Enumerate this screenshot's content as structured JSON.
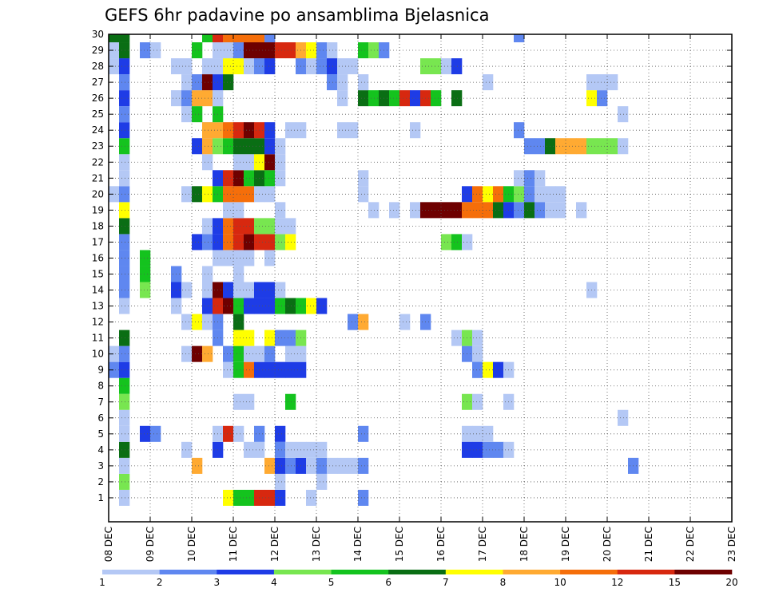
{
  "chart_data": {
    "type": "heatmap",
    "title": "GEFS 6hr padavine po ansamblima Bjelasnica",
    "x_tick_labels": [
      "08 DEC",
      "09 DEC",
      "10 DEC",
      "11 DEC",
      "12 DEC",
      "13 DEC",
      "14 DEC",
      "15 DEC",
      "16 DEC",
      "17 DEC",
      "18 DEC",
      "19 DEC",
      "20 DEC",
      "21 DEC",
      "22 DEC",
      "23 DEC"
    ],
    "y_tick_labels": [
      "1",
      "2",
      "3",
      "4",
      "5",
      "6",
      "7",
      "8",
      "9",
      "10",
      "11",
      "12",
      "13",
      "14",
      "15",
      "16",
      "17",
      "18",
      "19",
      "20",
      "21",
      "22",
      "23",
      "24",
      "25",
      "26",
      "27",
      "28",
      "29",
      "30"
    ],
    "time_step_hours": 6,
    "ensemble_members": 31,
    "grid": true,
    "colorbar": {
      "position": "bottom",
      "labels": [
        "1",
        "2",
        "3",
        "4",
        "5",
        "6",
        "7",
        "8",
        "10",
        "12",
        "15",
        "20"
      ],
      "colors": [
        "#b4c8f5",
        "#5f87f0",
        "#1e3ce6",
        "#78e650",
        "#14c31e",
        "#0a6e14",
        "#ffff00",
        "#ffaa32",
        "#f56e0a",
        "#d7280f",
        "#6e0000"
      ]
    },
    "series_note": "",
    "cells": [
      [
        0,
        10,
        1
      ],
      [
        0,
        9,
        2
      ],
      [
        0,
        20,
        1
      ],
      [
        0,
        28,
        1
      ],
      [
        0,
        29,
        1
      ],
      [
        0,
        30,
        6
      ],
      [
        1,
        1,
        1
      ],
      [
        1,
        2,
        4
      ],
      [
        1,
        3,
        1
      ],
      [
        1,
        4,
        6
      ],
      [
        1,
        5,
        1
      ],
      [
        1,
        6,
        1
      ],
      [
        1,
        7,
        4
      ],
      [
        1,
        8,
        5
      ],
      [
        1,
        9,
        3
      ],
      [
        1,
        10,
        2
      ],
      [
        1,
        11,
        6
      ],
      [
        1,
        13,
        1
      ],
      [
        1,
        14,
        2
      ],
      [
        1,
        15,
        2
      ],
      [
        1,
        16,
        2
      ],
      [
        1,
        17,
        2
      ],
      [
        1,
        18,
        6
      ],
      [
        1,
        19,
        7
      ],
      [
        1,
        20,
        2
      ],
      [
        1,
        21,
        1
      ],
      [
        1,
        22,
        1
      ],
      [
        1,
        23,
        5
      ],
      [
        1,
        24,
        3
      ],
      [
        1,
        25,
        2
      ],
      [
        1,
        26,
        3
      ],
      [
        1,
        27,
        2
      ],
      [
        1,
        28,
        3
      ],
      [
        1,
        29,
        6
      ],
      [
        1,
        30,
        6
      ],
      [
        3,
        5,
        3
      ],
      [
        3,
        16,
        5
      ],
      [
        3,
        29,
        2
      ],
      [
        3,
        14,
        4
      ],
      [
        3,
        15,
        5
      ],
      [
        4,
        29,
        1
      ],
      [
        4,
        5,
        2
      ],
      [
        6,
        26,
        1
      ],
      [
        6,
        28,
        1
      ],
      [
        6,
        13,
        1
      ],
      [
        6,
        14,
        3
      ],
      [
        6,
        15,
        2
      ],
      [
        7,
        14,
        1
      ],
      [
        7,
        10,
        1
      ],
      [
        7,
        4,
        1
      ],
      [
        7,
        25,
        1
      ],
      [
        7,
        26,
        2
      ],
      [
        7,
        27,
        1
      ],
      [
        7,
        28,
        1
      ],
      [
        7,
        12,
        1
      ],
      [
        7,
        20,
        1
      ],
      [
        8,
        26,
        8
      ],
      [
        8,
        27,
        2
      ],
      [
        8,
        3,
        8
      ],
      [
        8,
        10,
        11
      ],
      [
        8,
        12,
        7
      ],
      [
        8,
        17,
        3
      ],
      [
        8,
        20,
        6
      ],
      [
        8,
        23,
        3
      ],
      [
        8,
        25,
        5
      ],
      [
        8,
        29,
        5
      ],
      [
        9,
        24,
        1
      ],
      [
        9,
        26,
        8
      ],
      [
        9,
        27,
        11
      ],
      [
        9,
        28,
        1
      ],
      [
        9,
        30,
        5
      ],
      [
        9,
        10,
        8
      ],
      [
        9,
        12,
        1
      ],
      [
        9,
        13,
        3
      ],
      [
        9,
        14,
        1
      ],
      [
        9,
        15,
        1
      ],
      [
        9,
        17,
        2
      ],
      [
        9,
        18,
        1
      ],
      [
        9,
        20,
        7
      ],
      [
        9,
        22,
        1
      ],
      [
        9,
        23,
        8
      ],
      [
        9,
        24,
        8
      ],
      [
        10,
        4,
        3
      ],
      [
        10,
        5,
        1
      ],
      [
        10,
        11,
        2
      ],
      [
        10,
        12,
        2
      ],
      [
        10,
        13,
        10
      ],
      [
        10,
        14,
        11
      ],
      [
        10,
        16,
        1
      ],
      [
        10,
        17,
        3
      ],
      [
        10,
        18,
        3
      ],
      [
        10,
        20,
        5
      ],
      [
        10,
        21,
        3
      ],
      [
        10,
        23,
        4
      ],
      [
        10,
        24,
        8
      ],
      [
        10,
        25,
        5
      ],
      [
        10,
        26,
        1
      ],
      [
        10,
        27,
        3
      ],
      [
        10,
        28,
        1
      ],
      [
        10,
        29,
        1
      ],
      [
        10,
        30,
        10
      ],
      [
        11,
        1,
        7
      ],
      [
        11,
        5,
        10
      ],
      [
        11,
        9,
        1
      ],
      [
        11,
        10,
        2
      ],
      [
        11,
        13,
        11
      ],
      [
        11,
        14,
        3
      ],
      [
        11,
        16,
        1
      ],
      [
        11,
        17,
        9
      ],
      [
        11,
        18,
        9
      ],
      [
        11,
        19,
        1
      ],
      [
        11,
        20,
        9
      ],
      [
        11,
        21,
        10
      ],
      [
        11,
        23,
        5
      ],
      [
        11,
        24,
        9
      ],
      [
        11,
        27,
        6
      ],
      [
        11,
        28,
        7
      ],
      [
        11,
        29,
        1
      ],
      [
        11,
        30,
        9
      ],
      [
        12,
        1,
        5
      ],
      [
        12,
        5,
        1
      ],
      [
        12,
        7,
        1
      ],
      [
        12,
        9,
        5
      ],
      [
        12,
        10,
        5
      ],
      [
        12,
        11,
        7
      ],
      [
        12,
        12,
        6
      ],
      [
        12,
        13,
        5
      ],
      [
        12,
        14,
        1
      ],
      [
        12,
        15,
        1
      ],
      [
        12,
        16,
        1
      ],
      [
        12,
        17,
        10
      ],
      [
        12,
        18,
        10
      ],
      [
        12,
        19,
        1
      ],
      [
        12,
        20,
        9
      ],
      [
        12,
        21,
        11
      ],
      [
        12,
        22,
        1
      ],
      [
        12,
        23,
        6
      ],
      [
        12,
        24,
        10
      ],
      [
        12,
        28,
        7
      ],
      [
        12,
        29,
        2
      ],
      [
        12,
        30,
        9
      ],
      [
        13,
        1,
        5
      ],
      [
        13,
        4,
        1
      ],
      [
        13,
        7,
        1
      ],
      [
        13,
        9,
        9
      ],
      [
        13,
        10,
        1
      ],
      [
        13,
        11,
        7
      ],
      [
        13,
        13,
        3
      ],
      [
        13,
        14,
        1
      ],
      [
        13,
        16,
        1
      ],
      [
        13,
        17,
        11
      ],
      [
        13,
        18,
        10
      ],
      [
        13,
        20,
        9
      ],
      [
        13,
        21,
        5
      ],
      [
        13,
        22,
        1
      ],
      [
        13,
        23,
        6
      ],
      [
        13,
        24,
        11
      ],
      [
        13,
        28,
        1
      ],
      [
        13,
        29,
        11
      ],
      [
        13,
        30,
        9
      ],
      [
        14,
        1,
        10
      ],
      [
        14,
        4,
        1
      ],
      [
        14,
        5,
        2
      ],
      [
        14,
        9,
        3
      ],
      [
        14,
        10,
        1
      ],
      [
        14,
        13,
        3
      ],
      [
        14,
        14,
        3
      ],
      [
        14,
        17,
        10
      ],
      [
        14,
        18,
        4
      ],
      [
        14,
        20,
        1
      ],
      [
        14,
        21,
        6
      ],
      [
        14,
        22,
        7
      ],
      [
        14,
        23,
        6
      ],
      [
        14,
        24,
        10
      ],
      [
        14,
        28,
        2
      ],
      [
        14,
        29,
        11
      ],
      [
        14,
        30,
        9
      ],
      [
        15,
        1,
        10
      ],
      [
        15,
        3,
        8
      ],
      [
        15,
        9,
        3
      ],
      [
        15,
        10,
        2
      ],
      [
        15,
        11,
        7
      ],
      [
        15,
        13,
        3
      ],
      [
        15,
        14,
        3
      ],
      [
        15,
        16,
        1
      ],
      [
        15,
        17,
        10
      ],
      [
        15,
        18,
        4
      ],
      [
        15,
        20,
        1
      ],
      [
        15,
        21,
        5
      ],
      [
        15,
        22,
        11
      ],
      [
        15,
        23,
        3
      ],
      [
        15,
        24,
        3
      ],
      [
        15,
        28,
        3
      ],
      [
        15,
        29,
        11
      ],
      [
        15,
        30,
        2
      ],
      [
        16,
        1,
        3
      ],
      [
        16,
        2,
        1
      ],
      [
        16,
        3,
        3
      ],
      [
        16,
        4,
        2
      ],
      [
        16,
        5,
        3
      ],
      [
        16,
        9,
        3
      ],
      [
        16,
        11,
        2
      ],
      [
        16,
        13,
        5
      ],
      [
        16,
        14,
        1
      ],
      [
        16,
        17,
        4
      ],
      [
        16,
        18,
        1
      ],
      [
        16,
        19,
        1
      ],
      [
        16,
        21,
        1
      ],
      [
        16,
        22,
        1
      ],
      [
        16,
        23,
        1
      ],
      [
        16,
        29,
        10
      ],
      [
        17,
        3,
        2
      ],
      [
        17,
        4,
        1
      ],
      [
        17,
        7,
        5
      ],
      [
        17,
        9,
        3
      ],
      [
        17,
        10,
        1
      ],
      [
        17,
        11,
        2
      ],
      [
        17,
        13,
        6
      ],
      [
        17,
        17,
        7
      ],
      [
        17,
        18,
        1
      ],
      [
        17,
        24,
        1
      ],
      [
        17,
        29,
        10
      ],
      [
        18,
        3,
        3
      ],
      [
        18,
        4,
        1
      ],
      [
        18,
        9,
        3
      ],
      [
        18,
        10,
        1
      ],
      [
        18,
        11,
        4
      ],
      [
        18,
        13,
        5
      ],
      [
        18,
        24,
        1
      ],
      [
        18,
        28,
        2
      ],
      [
        18,
        29,
        8
      ],
      [
        19,
        1,
        1
      ],
      [
        19,
        3,
        1
      ],
      [
        19,
        4,
        1
      ],
      [
        19,
        13,
        7
      ],
      [
        19,
        28,
        1
      ],
      [
        19,
        29,
        7
      ],
      [
        20,
        2,
        1
      ],
      [
        20,
        3,
        2
      ],
      [
        20,
        4,
        1
      ],
      [
        20,
        13,
        3
      ],
      [
        20,
        28,
        2
      ],
      [
        20,
        29,
        2
      ],
      [
        21,
        3,
        1
      ],
      [
        21,
        27,
        2
      ],
      [
        21,
        28,
        3
      ],
      [
        21,
        29,
        1
      ],
      [
        22,
        3,
        1
      ],
      [
        22,
        26,
        1
      ],
      [
        22,
        27,
        1
      ],
      [
        22,
        28,
        1
      ],
      [
        22,
        24,
        1
      ],
      [
        23,
        3,
        1
      ],
      [
        23,
        12,
        2
      ],
      [
        23,
        12,
        2
      ],
      [
        23,
        24,
        1
      ],
      [
        23,
        28,
        1
      ],
      [
        24,
        1,
        2
      ],
      [
        24,
        3,
        2
      ],
      [
        24,
        5,
        2
      ],
      [
        24,
        12,
        8
      ],
      [
        24,
        20,
        1
      ],
      [
        24,
        21,
        1
      ],
      [
        24,
        26,
        6
      ],
      [
        24,
        27,
        1
      ],
      [
        24,
        29,
        5
      ],
      [
        25,
        19,
        1
      ],
      [
        25,
        26,
        5
      ],
      [
        25,
        29,
        4
      ],
      [
        26,
        26,
        6
      ],
      [
        26,
        29,
        2
      ],
      [
        27,
        26,
        5
      ],
      [
        27,
        19,
        1
      ],
      [
        28,
        26,
        10
      ],
      [
        28,
        12,
        1
      ],
      [
        29,
        26,
        3
      ],
      [
        29,
        19,
        1
      ],
      [
        29,
        24,
        1
      ],
      [
        30,
        26,
        10
      ],
      [
        30,
        12,
        2
      ],
      [
        30,
        19,
        11
      ],
      [
        30,
        28,
        4
      ],
      [
        31,
        26,
        5
      ],
      [
        31,
        19,
        11
      ],
      [
        31,
        28,
        4
      ],
      [
        32,
        19,
        11
      ],
      [
        32,
        17,
        4
      ],
      [
        32,
        28,
        1
      ],
      [
        33,
        26,
        6
      ],
      [
        33,
        19,
        11
      ],
      [
        33,
        17,
        5
      ],
      [
        33,
        28,
        3
      ],
      [
        33,
        11,
        1
      ],
      [
        34,
        10,
        2
      ],
      [
        34,
        11,
        4
      ],
      [
        34,
        7,
        4
      ],
      [
        34,
        5,
        1
      ],
      [
        34,
        4,
        3
      ],
      [
        34,
        20,
        3
      ],
      [
        34,
        19,
        9
      ],
      [
        34,
        17,
        1
      ],
      [
        35,
        5,
        1
      ],
      [
        35,
        4,
        3
      ],
      [
        35,
        9,
        2
      ],
      [
        35,
        11,
        1
      ],
      [
        35,
        10,
        1
      ],
      [
        35,
        20,
        9
      ],
      [
        35,
        19,
        9
      ],
      [
        35,
        9,
        2
      ],
      [
        35,
        7,
        1
      ],
      [
        36,
        20,
        7
      ],
      [
        36,
        19,
        9
      ],
      [
        36,
        9,
        7
      ],
      [
        36,
        4,
        2
      ],
      [
        36,
        5,
        1
      ],
      [
        36,
        27,
        1
      ],
      [
        37,
        20,
        9
      ],
      [
        37,
        19,
        6
      ],
      [
        37,
        9,
        3
      ],
      [
        37,
        4,
        2
      ],
      [
        38,
        20,
        5
      ],
      [
        38,
        19,
        3
      ],
      [
        38,
        9,
        1
      ],
      [
        38,
        4,
        1
      ],
      [
        38,
        7,
        1
      ],
      [
        39,
        20,
        4
      ],
      [
        39,
        19,
        2
      ],
      [
        39,
        21,
        1
      ],
      [
        39,
        24,
        2
      ],
      [
        39,
        30,
        2
      ],
      [
        40,
        20,
        2
      ],
      [
        40,
        19,
        6
      ],
      [
        40,
        21,
        2
      ],
      [
        40,
        23,
        2
      ],
      [
        41,
        20,
        1
      ],
      [
        41,
        19,
        2
      ],
      [
        41,
        21,
        1
      ],
      [
        41,
        23,
        2
      ],
      [
        42,
        20,
        1
      ],
      [
        42,
        23,
        6
      ],
      [
        42,
        19,
        1
      ],
      [
        43,
        23,
        8
      ],
      [
        43,
        20,
        1
      ],
      [
        43,
        19,
        1
      ],
      [
        44,
        23,
        8
      ],
      [
        45,
        23,
        8
      ],
      [
        45,
        19,
        1
      ],
      [
        46,
        23,
        4
      ],
      [
        46,
        26,
        7
      ],
      [
        46,
        27,
        1
      ],
      [
        46,
        14,
        1
      ],
      [
        47,
        26,
        2
      ],
      [
        47,
        23,
        4
      ],
      [
        47,
        27,
        1
      ],
      [
        48,
        23,
        4
      ],
      [
        48,
        27,
        1
      ],
      [
        49,
        23,
        1
      ],
      [
        49,
        25,
        1
      ],
      [
        49,
        6,
        1
      ],
      [
        50,
        3,
        2
      ]
    ]
  }
}
